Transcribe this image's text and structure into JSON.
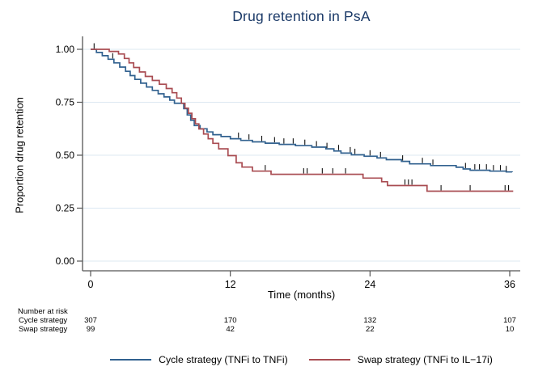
{
  "window": {
    "background": "#ffffff"
  },
  "chart_data": {
    "type": "line",
    "subtype": "kaplan-meier-step",
    "title": "Drug retention in PsA",
    "title_color": "#1b3a68",
    "xlabel": "Time (months)",
    "ylabel": "Proportion drug retention",
    "xlim": [
      0,
      36
    ],
    "ylim": [
      0,
      1
    ],
    "xticks": [
      0,
      12,
      24,
      36
    ],
    "ytick_labels": [
      "0.00",
      "0.25",
      "0.50",
      "0.75",
      "1.00"
    ],
    "grid": {
      "horizontal": true,
      "color": "#dce8f2"
    },
    "axis_color": "#555555",
    "censor_tick_color": "#101010",
    "legend_position": "bottom-center",
    "series": [
      {
        "name": "Cycle strategy (TNFi to TNFi)",
        "color": "#31618f",
        "steps": [
          [
            0,
            1.0
          ],
          [
            0.5,
            0.985
          ],
          [
            1.0,
            0.97
          ],
          [
            1.5,
            0.953
          ],
          [
            2.0,
            0.936
          ],
          [
            2.5,
            0.916
          ],
          [
            3.0,
            0.896
          ],
          [
            3.4,
            0.876
          ],
          [
            3.8,
            0.858
          ],
          [
            4.3,
            0.84
          ],
          [
            4.8,
            0.822
          ],
          [
            5.3,
            0.806
          ],
          [
            5.8,
            0.79
          ],
          [
            6.3,
            0.775
          ],
          [
            6.8,
            0.76
          ],
          [
            7.2,
            0.745
          ],
          [
            8.0,
            0.72
          ],
          [
            8.3,
            0.69
          ],
          [
            8.6,
            0.665
          ],
          [
            8.9,
            0.64
          ],
          [
            9.4,
            0.625
          ],
          [
            10.0,
            0.61
          ],
          [
            10.5,
            0.597
          ],
          [
            11.2,
            0.588
          ],
          [
            12.0,
            0.578
          ],
          [
            12.9,
            0.57
          ],
          [
            13.9,
            0.563
          ],
          [
            15.0,
            0.557
          ],
          [
            16.2,
            0.551
          ],
          [
            17.6,
            0.545
          ],
          [
            19.0,
            0.538
          ],
          [
            20.2,
            0.53
          ],
          [
            20.9,
            0.52
          ],
          [
            21.5,
            0.51
          ],
          [
            22.4,
            0.502
          ],
          [
            23.5,
            0.495
          ],
          [
            24.6,
            0.487
          ],
          [
            25.4,
            0.479
          ],
          [
            26.7,
            0.471
          ],
          [
            27.4,
            0.459
          ],
          [
            29.2,
            0.451
          ],
          [
            31.4,
            0.443
          ],
          [
            32.0,
            0.435
          ],
          [
            32.6,
            0.429
          ],
          [
            34.3,
            0.425
          ],
          [
            35.7,
            0.421
          ],
          [
            36.2,
            0.42
          ]
        ],
        "censor_months": [
          0.3,
          1.9,
          12.7,
          13.6,
          14.7,
          15.8,
          16.6,
          17.4,
          18.4,
          19.4,
          20.3,
          21.3,
          22.3,
          22.7,
          24.0,
          24.9,
          26.8,
          28.5,
          29.4,
          32.2,
          33.0,
          33.4,
          34.0,
          34.6,
          35.2,
          35.7
        ]
      },
      {
        "name": "Swap strategy (TNFi to IL−17i)",
        "color": "#a94c52",
        "steps": [
          [
            0,
            1.0
          ],
          [
            1.6,
            0.99
          ],
          [
            2.4,
            0.978
          ],
          [
            2.9,
            0.957
          ],
          [
            3.3,
            0.936
          ],
          [
            3.7,
            0.914
          ],
          [
            4.2,
            0.893
          ],
          [
            4.7,
            0.872
          ],
          [
            5.3,
            0.853
          ],
          [
            5.9,
            0.835
          ],
          [
            6.5,
            0.815
          ],
          [
            7.0,
            0.795
          ],
          [
            7.4,
            0.77
          ],
          [
            7.8,
            0.745
          ],
          [
            8.1,
            0.722
          ],
          [
            8.4,
            0.698
          ],
          [
            8.7,
            0.672
          ],
          [
            9.0,
            0.648
          ],
          [
            9.3,
            0.624
          ],
          [
            9.7,
            0.6
          ],
          [
            10.1,
            0.578
          ],
          [
            10.5,
            0.556
          ],
          [
            11.0,
            0.53
          ],
          [
            11.8,
            0.498
          ],
          [
            12.5,
            0.464
          ],
          [
            13.0,
            0.444
          ],
          [
            13.9,
            0.425
          ],
          [
            15.5,
            0.41
          ],
          [
            23.4,
            0.392
          ],
          [
            25.0,
            0.375
          ],
          [
            25.5,
            0.357
          ],
          [
            28.9,
            0.33
          ],
          [
            36.3,
            0.33
          ]
        ],
        "censor_months": [
          15.0,
          18.3,
          18.6,
          19.9,
          20.8,
          21.9,
          27.0,
          27.3,
          27.6,
          30.1,
          32.6,
          35.6,
          35.9
        ]
      }
    ],
    "risk_table": {
      "header": "Number at risk",
      "times": [
        0,
        12,
        24,
        36
      ],
      "rows": [
        {
          "label": "Cycle strategy",
          "values": [
            "307",
            "170",
            "132",
            "107"
          ]
        },
        {
          "label": "Swap strategy",
          "values": [
            "99",
            "42",
            "22",
            "10"
          ]
        }
      ]
    }
  }
}
